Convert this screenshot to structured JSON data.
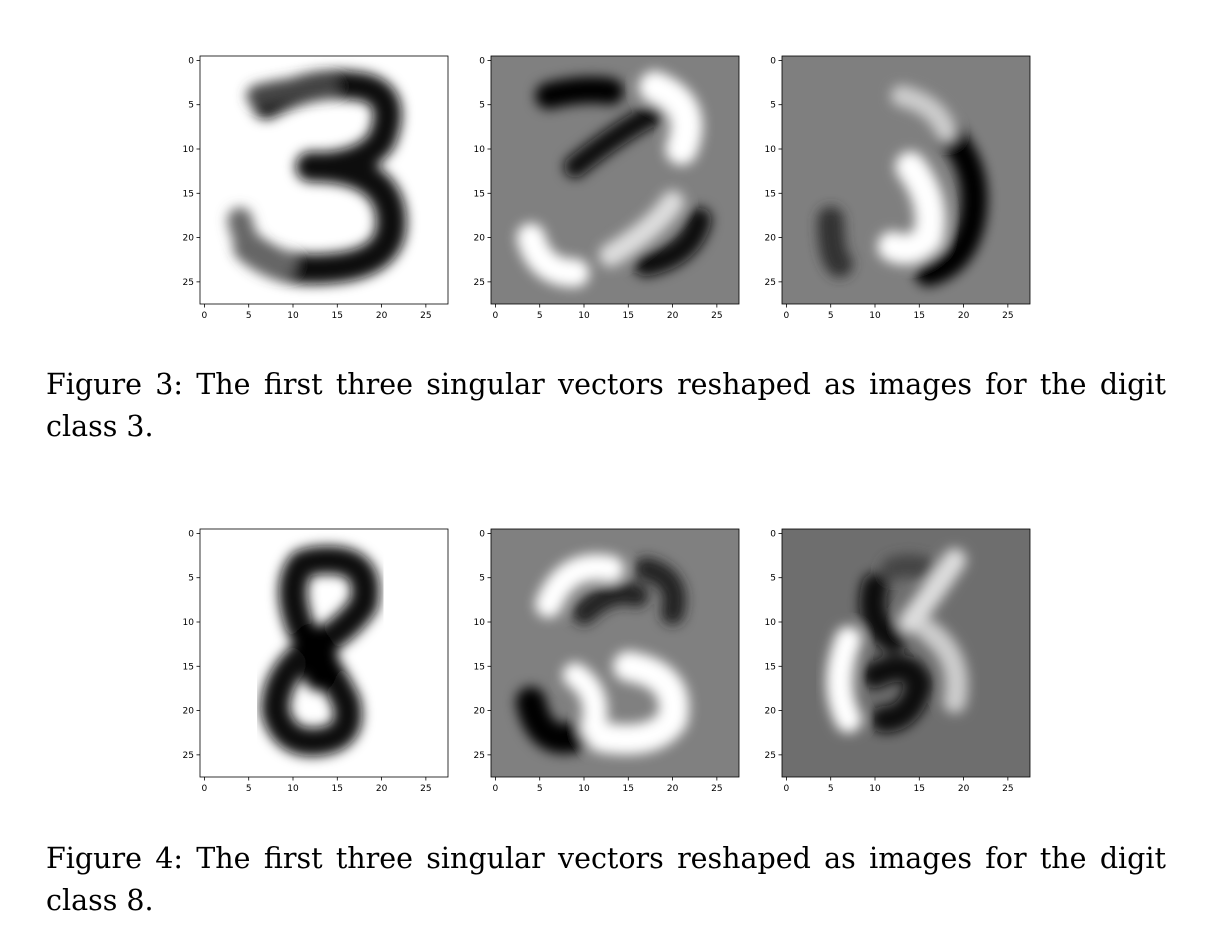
{
  "figures": [
    {
      "caption_line1": "Figure 3:  The first three singular vectors reshaped as images for the digit",
      "caption_line2": "class 3.",
      "digit": 3,
      "panels": [
        {
          "background": "#ffffff",
          "mode": "mean"
        },
        {
          "background": "#808080",
          "mode": "signed"
        },
        {
          "background": "#7f7f7f",
          "mode": "signed"
        }
      ]
    },
    {
      "caption_line1": "Figure 4:  The first three singular vectors reshaped as images for the digit",
      "caption_line2": "class 8.",
      "digit": 8,
      "panels": [
        {
          "background": "#ffffff",
          "mode": "mean"
        },
        {
          "background": "#808080",
          "mode": "signed"
        },
        {
          "background": "#6e6e6e",
          "mode": "signed"
        }
      ]
    }
  ],
  "axis": {
    "x_ticks": [
      "0",
      "5",
      "10",
      "15",
      "20",
      "25"
    ],
    "y_ticks": [
      "0",
      "5",
      "10",
      "15",
      "20",
      "25"
    ],
    "range": [
      -0.5,
      27.5
    ]
  }
}
